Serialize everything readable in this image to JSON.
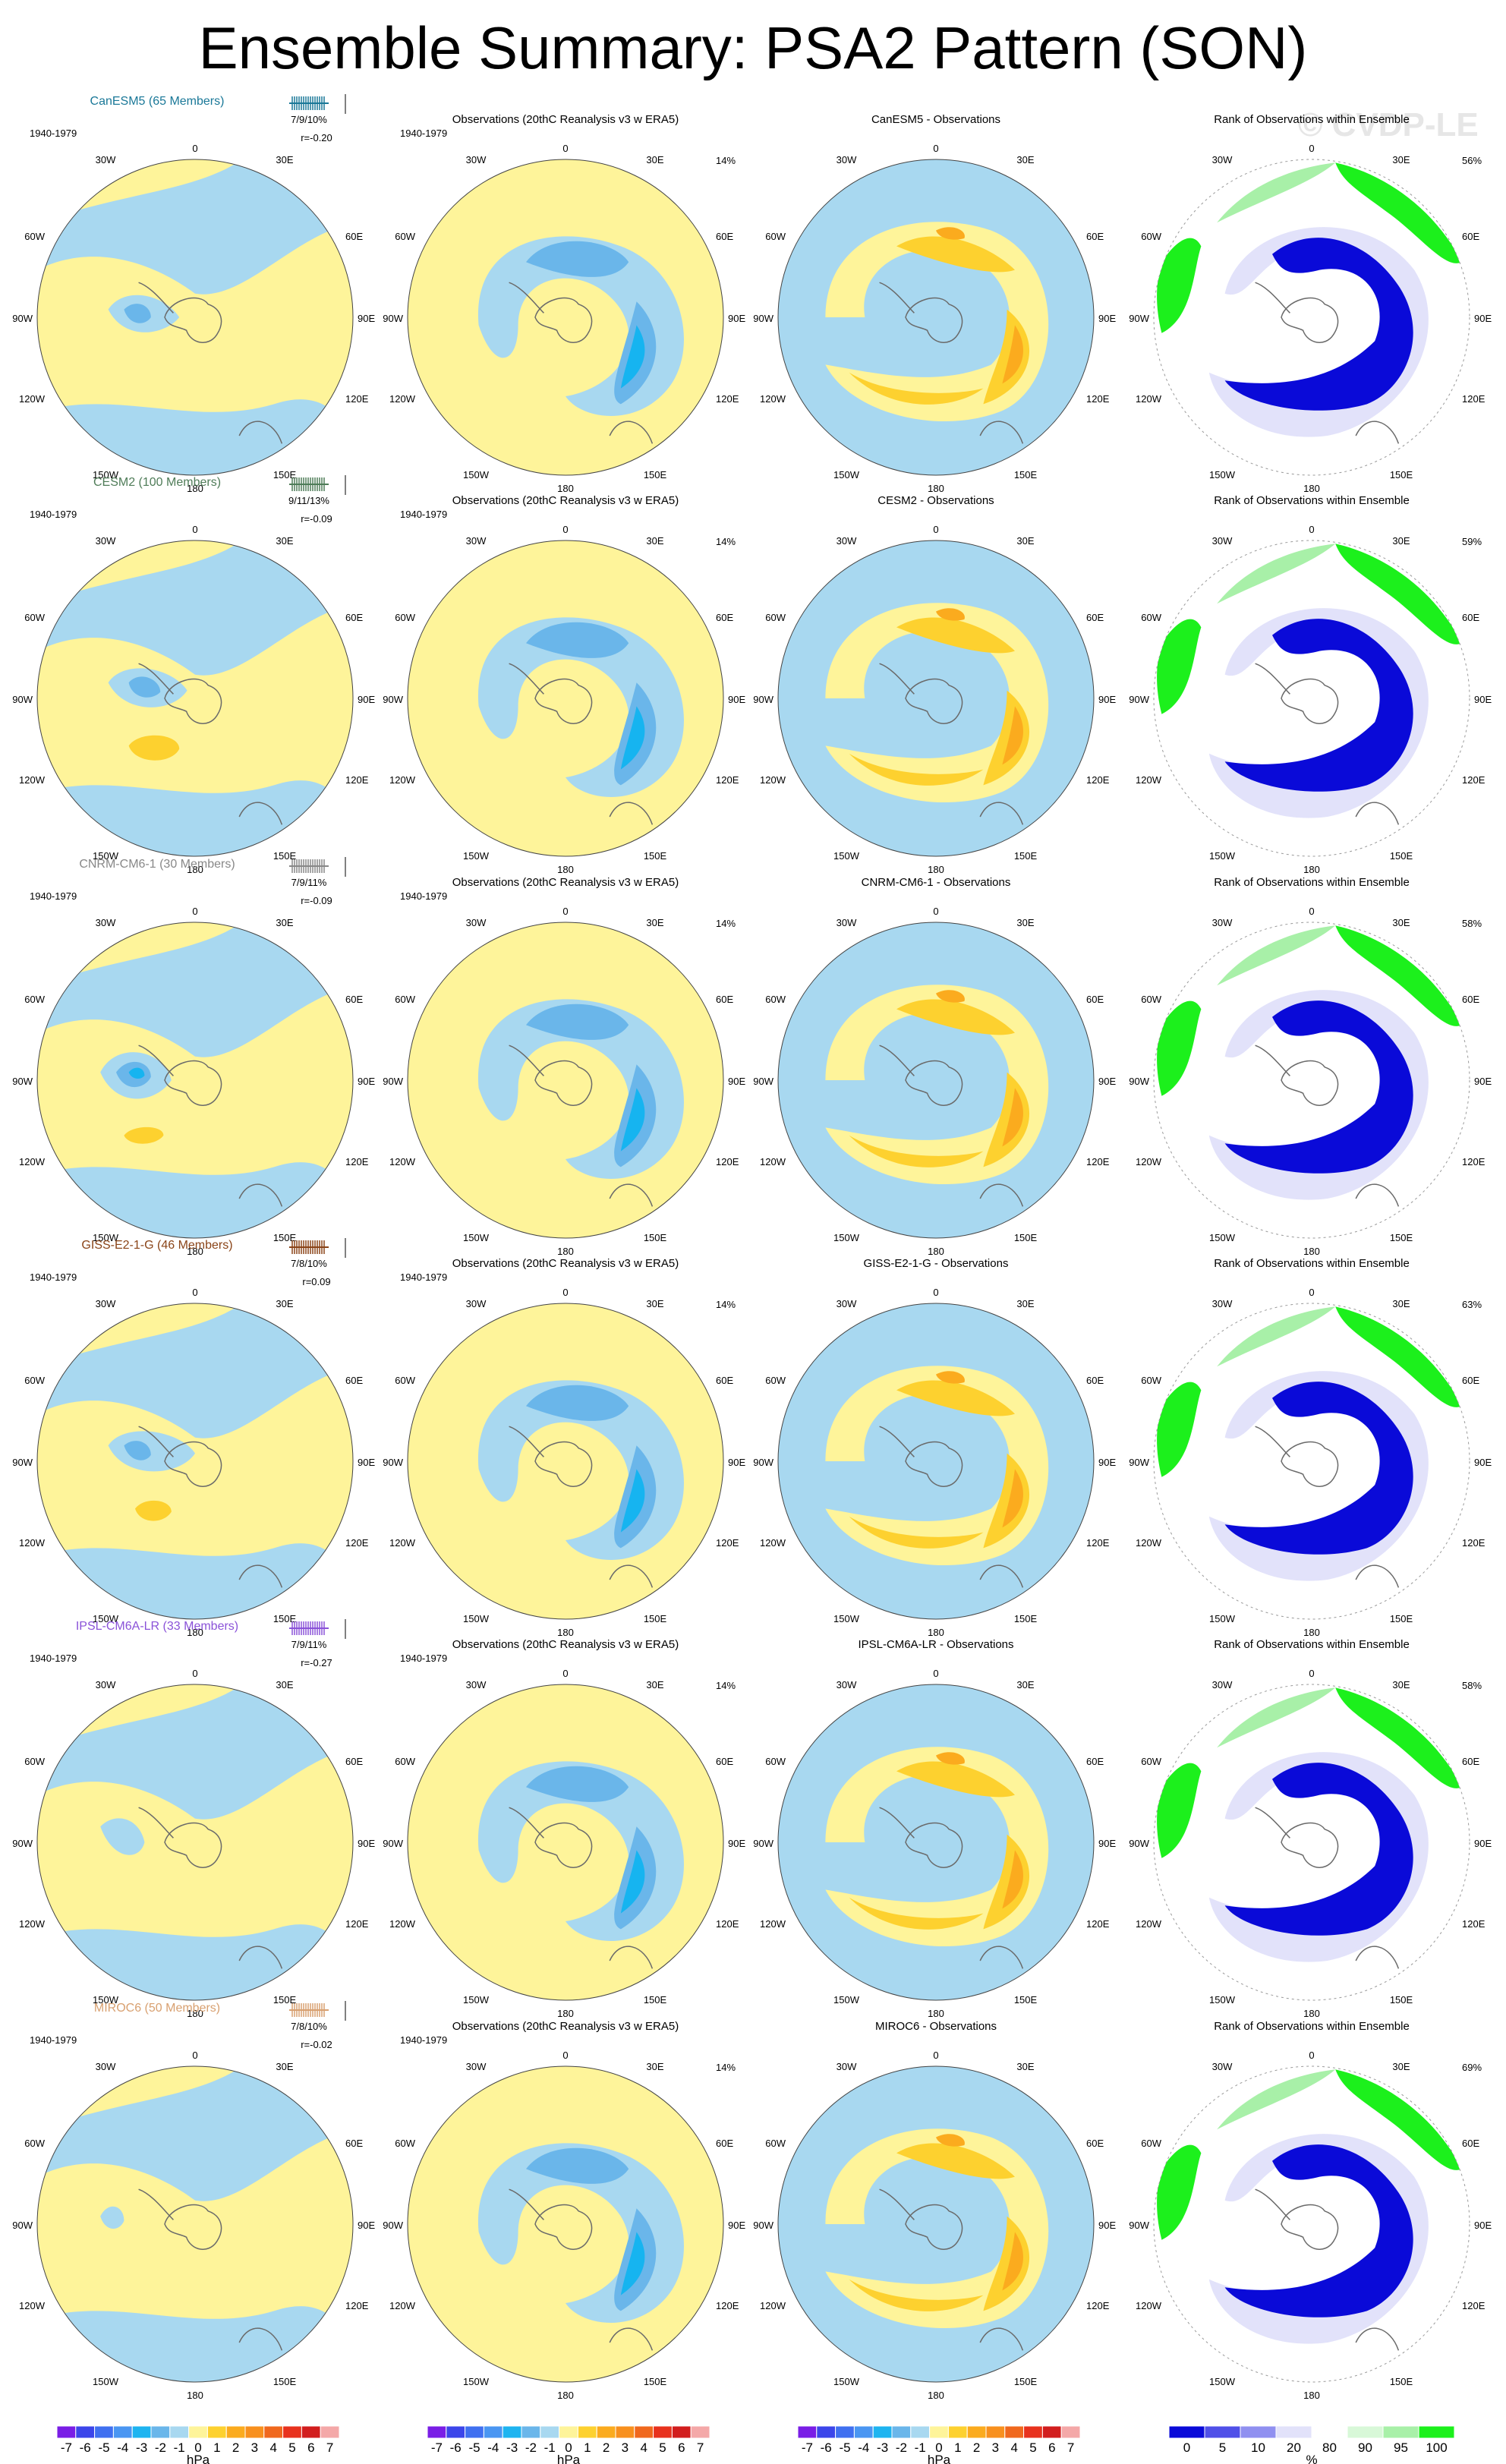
{
  "title": "Ensemble Summary: PSA2 Pattern (SON)",
  "watermark": "© CVDP-LE",
  "period": "1940-1979",
  "lon_labels": {
    "top": "0",
    "top_left": "30W",
    "top_right": "30E",
    "upper_left": "60W",
    "upper_right": "60E",
    "left": "90W",
    "right": "90E",
    "lower_left": "120W",
    "lower_right": "120E",
    "bottom_left": "150W",
    "bottom_right": "150E",
    "bottom": "180"
  },
  "colors": {
    "neg_light": "#a8d8f0",
    "neg_mid": "#6ab6ea",
    "neg_strong": "#16b4f0",
    "pos_light": "#fef49a",
    "pos_mid": "#fdd12f",
    "pos_strong": "#fbab1e",
    "rank_low": "#0a0ad8",
    "rank_midlow": "#9090f0",
    "rank_light": "#e2e2fa",
    "rank_high": "#1cf01c",
    "rank_midhigh": "#a8f0a8",
    "coast": "#6a6a6a"
  },
  "rows": [
    {
      "model": "CanESM5 (65 Members)",
      "model_color": "#1a7898",
      "stats": "7/9/10%",
      "corr": "r=-0.20",
      "obs_title": "Observations (20thC Reanalysis v3 w ERA5)",
      "obs_pct": "14%",
      "diff_title": "CanESM5 - Observations",
      "rank_title": "Rank of Observations within Ensemble",
      "rank_pct": "56%"
    },
    {
      "model": "CESM2 (100 Members)",
      "model_color": "#4f7c58",
      "stats": "9/11/13%",
      "corr": "r=-0.09",
      "obs_title": "Observations (20thC Reanalysis v3 w ERA5)",
      "obs_pct": "14%",
      "diff_title": "CESM2 - Observations",
      "rank_title": "Rank of Observations within Ensemble",
      "rank_pct": "59%"
    },
    {
      "model": "CNRM-CM6-1 (30 Members)",
      "model_color": "#888888",
      "stats": "7/9/11%",
      "corr": "r=-0.09",
      "obs_title": "Observations (20thC Reanalysis v3 w ERA5)",
      "obs_pct": "14%",
      "diff_title": "CNRM-CM6-1 - Observations",
      "rank_title": "Rank of Observations within Ensemble",
      "rank_pct": "58%"
    },
    {
      "model": "GISS-E2-1-G (46 Members)",
      "model_color": "#8a4418",
      "stats": "7/8/10%",
      "corr": "r=0.09",
      "obs_title": "Observations (20thC Reanalysis v3 w ERA5)",
      "obs_pct": "14%",
      "diff_title": "GISS-E2-1-G - Observations",
      "rank_title": "Rank of Observations within Ensemble",
      "rank_pct": "63%"
    },
    {
      "model": "IPSL-CM6A-LR (33 Members)",
      "model_color": "#8a52d8",
      "stats": "7/9/11%",
      "corr": "r=-0.27",
      "obs_title": "Observations (20thC Reanalysis v3 w ERA5)",
      "obs_pct": "14%",
      "diff_title": "IPSL-CM6A-LR - Observations",
      "rank_title": "Rank of Observations within Ensemble",
      "rank_pct": "58%"
    },
    {
      "model": "MIROC6 (50 Members)",
      "model_color": "#d8a070",
      "stats": "7/8/10%",
      "corr": "r=-0.02",
      "obs_title": "Observations (20thC Reanalysis v3 w ERA5)",
      "obs_pct": "14%",
      "diff_title": "MIROC6 - Observations",
      "rank_title": "Rank of Observations within Ensemble",
      "rank_pct": "69%"
    }
  ],
  "colorbars": [
    {
      "labels": [
        "-7",
        "-6",
        "-5",
        "-4",
        "-3",
        "-2",
        "-1",
        "0",
        "1",
        "2",
        "3",
        "4",
        "5",
        "6",
        "7"
      ],
      "unit": "hPa",
      "colors": [
        "#7a1ee6",
        "#3c46ea",
        "#4070f0",
        "#4a96f2",
        "#1eb4f0",
        "#6ab6ea",
        "#a8d8f0",
        "#fef49a",
        "#fdd12f",
        "#fbab1e",
        "#f8901e",
        "#f0681e",
        "#e8321e",
        "#d21e1e",
        "#f4a8a8"
      ]
    },
    {
      "labels": [
        "-7",
        "-6",
        "-5",
        "-4",
        "-3",
        "-2",
        "-1",
        "0",
        "1",
        "2",
        "3",
        "4",
        "5",
        "6",
        "7"
      ],
      "unit": "hPa",
      "colors": [
        "#7a1ee6",
        "#3c46ea",
        "#4070f0",
        "#4a96f2",
        "#1eb4f0",
        "#6ab6ea",
        "#a8d8f0",
        "#fef49a",
        "#fdd12f",
        "#fbab1e",
        "#f8901e",
        "#f0681e",
        "#e8321e",
        "#d21e1e",
        "#f4a8a8"
      ]
    },
    {
      "labels": [
        "-7",
        "-6",
        "-5",
        "-4",
        "-3",
        "-2",
        "-1",
        "0",
        "1",
        "2",
        "3",
        "4",
        "5",
        "6",
        "7"
      ],
      "unit": "hPa",
      "colors": [
        "#7a1ee6",
        "#3c46ea",
        "#4070f0",
        "#4a96f2",
        "#1eb4f0",
        "#6ab6ea",
        "#a8d8f0",
        "#fef49a",
        "#fdd12f",
        "#fbab1e",
        "#f8901e",
        "#f0681e",
        "#e8321e",
        "#d21e1e",
        "#f4a8a8"
      ]
    },
    {
      "labels": [
        "0",
        "5",
        "10",
        "20",
        "80",
        "90",
        "95",
        "100"
      ],
      "unit": "%",
      "colors": [
        "#0a0ad8",
        "#5050e8",
        "#9090f0",
        "#e2e2fa",
        "#ffffff",
        "#d8f8d8",
        "#a8f0a8",
        "#1cf01c"
      ]
    }
  ],
  "chart_data": [
    {
      "type": "heatmap",
      "title": "CanESM5 (65 Members)",
      "projection": "south-polar stereographic",
      "units": "hPa"
    },
    {
      "type": "heatmap",
      "title": "Observations (20thC Reanalysis v3 w ERA5)",
      "units": "hPa"
    },
    {
      "type": "heatmap",
      "title": "CanESM5 - Observations",
      "units": "hPa"
    },
    {
      "type": "heatmap",
      "title": "Rank of Observations within Ensemble",
      "units": "%"
    }
  ]
}
